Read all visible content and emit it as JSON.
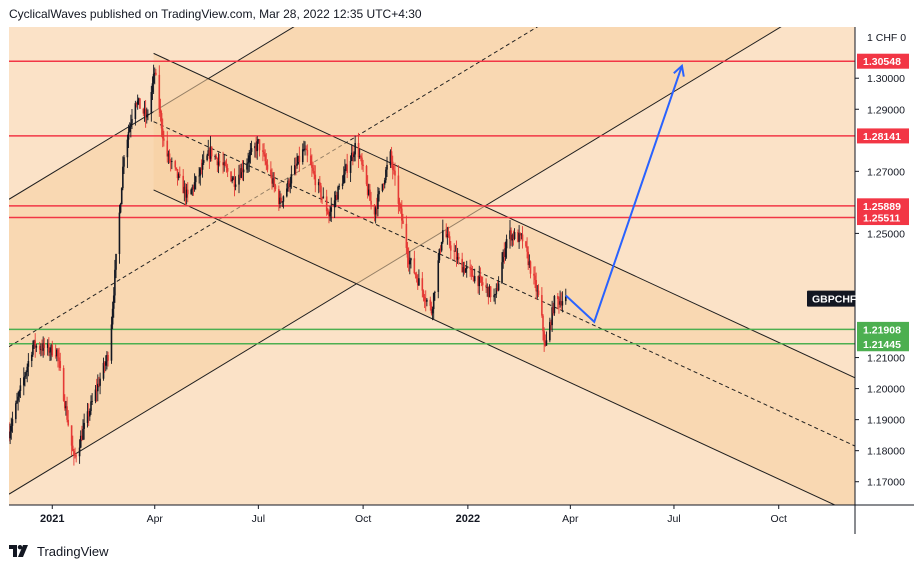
{
  "header": {
    "text": "CyclicalWaves published on TradingView.com, Mar 28, 2022 12:35 UTC+4:30"
  },
  "footer": {
    "brand": "TradingView",
    "logo_icon": "tradingview-logo-icon"
  },
  "colors": {
    "background": "#fbe2c7",
    "channel_band": "#f8cfa0",
    "resistance": "#f23645",
    "support": "#4caf50",
    "projection": "#2962ff",
    "candle_up": "#131722",
    "candle_down": "#e53935",
    "symbol_tag": "#131722"
  },
  "chart_data": {
    "type": "candlestick",
    "symbol": "GBPCHF",
    "currency": "CHF",
    "y_scale_label": "1",
    "ylim": [
      1.1625,
      1.3165
    ],
    "x_range": [
      "2020-11-24",
      "2022-12-07"
    ],
    "y_ticks": [
      1.17,
      1.18,
      1.19,
      1.2,
      1.21,
      1.25,
      1.27,
      1.29,
      1.3
    ],
    "x_ticks": [
      {
        "label": "2021",
        "date": "2021-01-01",
        "bold": true
      },
      {
        "label": "Apr",
        "date": "2021-04-01",
        "bold": false
      },
      {
        "label": "Jul",
        "date": "2021-07-01",
        "bold": false
      },
      {
        "label": "Oct",
        "date": "2021-10-01",
        "bold": false
      },
      {
        "label": "2022",
        "date": "2022-01-01",
        "bold": true
      },
      {
        "label": "Apr",
        "date": "2022-04-01",
        "bold": false
      },
      {
        "label": "Jul",
        "date": "2022-07-01",
        "bold": false
      },
      {
        "label": "Oct",
        "date": "2022-10-01",
        "bold": false
      }
    ],
    "horizontal_levels": [
      {
        "value": 1.30548,
        "label": "1.30548",
        "kind": "resistance"
      },
      {
        "value": 1.28141,
        "label": "1.28141",
        "kind": "resistance"
      },
      {
        "value": 1.25889,
        "label": "1.25889",
        "kind": "resistance"
      },
      {
        "value": 1.25511,
        "label": "1.25511",
        "kind": "resistance"
      },
      {
        "value": 1.21908,
        "label": "1.21908",
        "kind": "support"
      },
      {
        "value": 1.21445,
        "label": "1.21445",
        "kind": "support"
      }
    ],
    "symbol_tag": {
      "label": "GBPCHF",
      "value": 1.229
    },
    "channels": [
      {
        "name": "rising-channel",
        "lower": [
          [
            "2020-11-24",
            1.166
          ],
          [
            "2022-12-07",
            1.331
          ]
        ],
        "upper": [
          [
            "2020-11-24",
            1.261
          ],
          [
            "2022-12-07",
            1.426
          ]
        ],
        "median": [
          [
            "2020-11-24",
            1.2135
          ],
          [
            "2022-12-07",
            1.3785
          ]
        ]
      },
      {
        "name": "falling-channel",
        "upper": [
          [
            "2021-03-31",
            1.308
          ],
          [
            "2022-12-07",
            1.2035
          ]
        ],
        "lower": [
          [
            "2021-03-31",
            1.264
          ],
          [
            "2022-12-07",
            1.1595
          ]
        ],
        "median": [
          [
            "2021-03-31",
            1.286
          ],
          [
            "2022-12-07",
            1.1815
          ]
        ]
      }
    ],
    "projection_path": [
      [
        "2022-03-28",
        1.23
      ],
      [
        "2022-04-22",
        1.2215
      ],
      [
        "2022-07-08",
        1.304
      ]
    ],
    "price_anchors": [
      [
        "2020-11-24",
        1.186
      ],
      [
        "2020-12-15",
        1.214
      ],
      [
        "2021-01-05",
        1.212
      ],
      [
        "2021-01-20",
        1.177
      ],
      [
        "2021-02-05",
        1.1955
      ],
      [
        "2021-02-20",
        1.212
      ],
      [
        "2021-03-05",
        1.276
      ],
      [
        "2021-03-15",
        1.2935
      ],
      [
        "2021-03-25",
        1.287
      ],
      [
        "2021-04-01",
        1.302
      ],
      [
        "2021-04-10",
        1.2765
      ],
      [
        "2021-04-30",
        1.2615
      ],
      [
        "2021-05-20",
        1.2765
      ],
      [
        "2021-06-10",
        1.267
      ],
      [
        "2021-07-01",
        1.279
      ],
      [
        "2021-07-20",
        1.26
      ],
      [
        "2021-08-10",
        1.277
      ],
      [
        "2021-09-01",
        1.256
      ],
      [
        "2021-09-25",
        1.279
      ],
      [
        "2021-10-10",
        1.256
      ],
      [
        "2021-10-25",
        1.275
      ],
      [
        "2021-11-10",
        1.242
      ],
      [
        "2021-11-30",
        1.225
      ],
      [
        "2021-12-10",
        1.251
      ],
      [
        "2021-12-25",
        1.24
      ],
      [
        "2022-01-10",
        1.235
      ],
      [
        "2022-01-25",
        1.229
      ],
      [
        "2022-02-05",
        1.25
      ],
      [
        "2022-02-18",
        1.248
      ],
      [
        "2022-03-05",
        1.228
      ],
      [
        "2022-03-10",
        1.213
      ],
      [
        "2022-03-18",
        1.228
      ],
      [
        "2022-03-28",
        1.229
      ]
    ]
  }
}
